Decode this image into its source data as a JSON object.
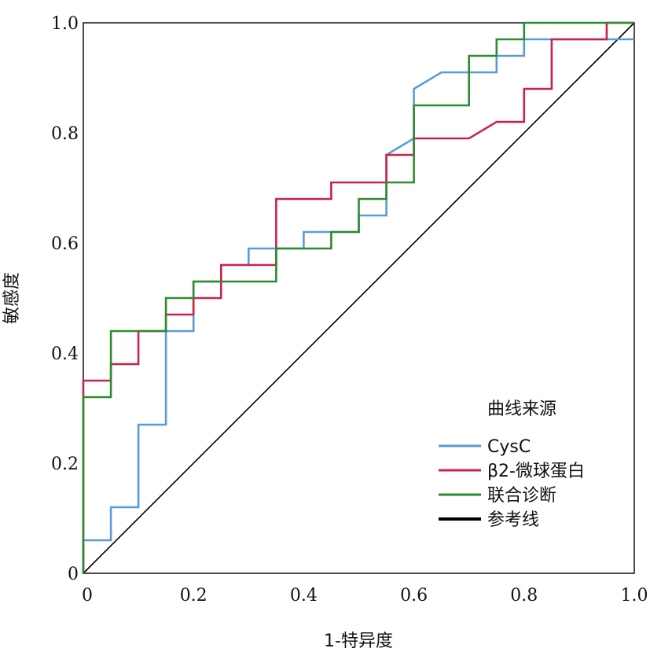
{
  "chart_data": {
    "type": "line",
    "title": "",
    "xlabel": "1-特异度",
    "ylabel": "敏感度",
    "xlim": [
      0,
      1
    ],
    "ylim": [
      0,
      1
    ],
    "x_tick_labels": [
      "0",
      "0.2",
      "0.4",
      "0.6",
      "0.8",
      "1.0"
    ],
    "y_tick_labels": [
      "0",
      "0.2",
      "0.4",
      "0.6",
      "0.8",
      "1.0"
    ],
    "x_ticks": [
      0,
      0.2,
      0.4,
      0.6,
      0.8,
      1.0
    ],
    "y_ticks": [
      0,
      0.2,
      0.4,
      0.6,
      0.8,
      1.0
    ],
    "grid": false,
    "legend": {
      "title": "曲线来源",
      "position": "bottom-right"
    },
    "series": [
      {
        "name": "CysC",
        "color": "#5b9bd5",
        "x": [
          0,
          0,
          0.05,
          0.05,
          0.1,
          0.1,
          0.15,
          0.15,
          0.2,
          0.2,
          0.25,
          0.25,
          0.3,
          0.3,
          0.4,
          0.4,
          0.5,
          0.5,
          0.55,
          0.55,
          0.6,
          0.6,
          0.65,
          0.7,
          0.75,
          0.75,
          0.8,
          0.8,
          1.0
        ],
        "y": [
          0,
          0.06,
          0.06,
          0.12,
          0.12,
          0.27,
          0.27,
          0.44,
          0.44,
          0.53,
          0.53,
          0.56,
          0.56,
          0.59,
          0.59,
          0.62,
          0.62,
          0.65,
          0.65,
          0.76,
          0.79,
          0.88,
          0.91,
          0.91,
          0.91,
          0.94,
          0.94,
          0.97,
          0.97
        ]
      },
      {
        "name": "β2-微球蛋白",
        "color": "#c8244a",
        "x": [
          0,
          0,
          0.05,
          0.05,
          0.1,
          0.1,
          0.15,
          0.15,
          0.2,
          0.2,
          0.25,
          0.25,
          0.35,
          0.35,
          0.45,
          0.45,
          0.55,
          0.55,
          0.6,
          0.6,
          0.7,
          0.75,
          0.8,
          0.8,
          0.85,
          0.85,
          0.95,
          0.95,
          1.0
        ],
        "y": [
          0,
          0.35,
          0.35,
          0.38,
          0.38,
          0.44,
          0.44,
          0.47,
          0.47,
          0.5,
          0.5,
          0.56,
          0.56,
          0.68,
          0.68,
          0.71,
          0.71,
          0.76,
          0.76,
          0.79,
          0.79,
          0.82,
          0.82,
          0.88,
          0.88,
          0.97,
          0.97,
          1.0,
          1.0
        ]
      },
      {
        "name": "联合诊断",
        "color": "#2e8b2e",
        "x": [
          0,
          0,
          0.05,
          0.05,
          0.15,
          0.15,
          0.2,
          0.2,
          0.35,
          0.35,
          0.45,
          0.45,
          0.5,
          0.5,
          0.55,
          0.55,
          0.6,
          0.6,
          0.7,
          0.7,
          0.75,
          0.75,
          0.8,
          0.8,
          1.0
        ],
        "y": [
          0,
          0.32,
          0.32,
          0.44,
          0.44,
          0.5,
          0.5,
          0.53,
          0.53,
          0.59,
          0.59,
          0.62,
          0.62,
          0.68,
          0.68,
          0.71,
          0.71,
          0.85,
          0.85,
          0.94,
          0.94,
          0.97,
          0.97,
          1.0,
          1.0
        ]
      },
      {
        "name": "参考线",
        "color": "#000000",
        "x": [
          0,
          1
        ],
        "y": [
          0,
          1
        ]
      }
    ]
  }
}
